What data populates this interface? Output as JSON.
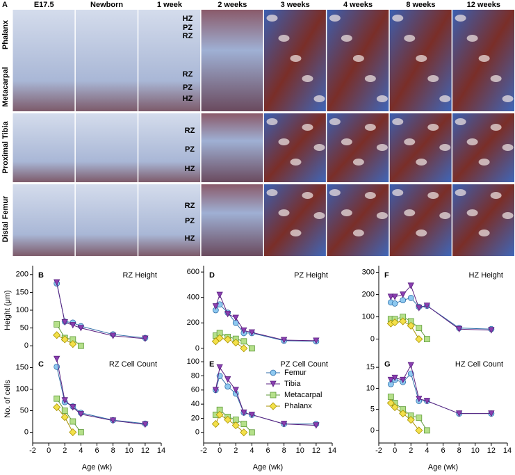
{
  "figure_a": {
    "panel_label": "A",
    "columns": [
      "E17.5",
      "Newborn",
      "1 week",
      "2 weeks",
      "3 weeks",
      "4 weeks",
      "8 weeks",
      "12 weeks"
    ],
    "rows": [
      "Phalanx",
      "Metacarpal",
      "Proximal Tibia",
      "Distal Femur"
    ],
    "zone_labels": [
      "HZ",
      "PZ",
      "RZ",
      "RZ",
      "PZ",
      "HZ",
      "RZ",
      "PZ",
      "HZ",
      "RZ",
      "PZ",
      "HZ"
    ]
  },
  "chart_data": [
    {
      "type": "line",
      "panel_label": "B",
      "title": "RZ Height",
      "y_label": "Height (μm)",
      "xlim": [
        -2,
        14
      ],
      "ylim": [
        -25,
        225
      ],
      "yticks": [
        0,
        50,
        100,
        150,
        200
      ],
      "series": [
        {
          "color": "#8ec9f0",
          "edge": "#2f6ea8",
          "marker": "circle",
          "x": [
            1,
            2,
            3,
            4,
            8,
            12
          ],
          "values": [
            175,
            68,
            65,
            55,
            32,
            22
          ]
        },
        {
          "color": "#8a3fb0",
          "edge": "#5a2080",
          "marker": "triangle",
          "x": [
            1,
            2,
            3,
            4,
            8,
            12
          ],
          "values": [
            178,
            66,
            58,
            50,
            28,
            20
          ]
        },
        {
          "color": "#b5e08a",
          "edge": "#5f9a3a",
          "marker": "square",
          "x": [
            1,
            2,
            3,
            4
          ],
          "values": [
            60,
            22,
            18,
            0
          ]
        },
        {
          "color": "#f3e04a",
          "edge": "#a89200",
          "marker": "diamond",
          "x": [
            1,
            2,
            3
          ],
          "values": [
            30,
            18,
            5
          ]
        }
      ]
    },
    {
      "type": "line",
      "panel_label": "C",
      "title": "RZ Cell Count",
      "y_label": "No. of cells",
      "x_label": "Age (wk)",
      "xlim": [
        -2,
        14
      ],
      "ylim": [
        -25,
        180
      ],
      "yticks": [
        0,
        50,
        100,
        150
      ],
      "xticks": [
        -2,
        0,
        2,
        4,
        6,
        8,
        10,
        12,
        14
      ],
      "series": [
        {
          "color": "#8ec9f0",
          "edge": "#2f6ea8",
          "marker": "circle",
          "x": [
            1,
            2,
            3,
            4,
            8,
            12
          ],
          "values": [
            152,
            70,
            60,
            45,
            28,
            20
          ]
        },
        {
          "color": "#8a3fb0",
          "edge": "#5a2080",
          "marker": "triangle",
          "x": [
            1,
            2,
            3,
            4,
            8,
            12
          ],
          "values": [
            170,
            74,
            58,
            42,
            27,
            18
          ]
        },
        {
          "color": "#b5e08a",
          "edge": "#5f9a3a",
          "marker": "square",
          "x": [
            1,
            2,
            3,
            4
          ],
          "values": [
            78,
            50,
            25,
            0
          ]
        },
        {
          "color": "#f3e04a",
          "edge": "#a89200",
          "marker": "diamond",
          "x": [
            1,
            2,
            3
          ],
          "values": [
            58,
            35,
            0
          ]
        }
      ]
    },
    {
      "type": "line",
      "panel_label": "D",
      "title": "PZ Height",
      "xlim": [
        -2,
        14
      ],
      "ylim": [
        -50,
        650
      ],
      "yticks": [
        0,
        200,
        400,
        600
      ],
      "series": [
        {
          "color": "#8ec9f0",
          "edge": "#2f6ea8",
          "marker": "circle",
          "x": [
            -0.5,
            0,
            1,
            2,
            3,
            4,
            8,
            12
          ],
          "values": [
            300,
            345,
            280,
            200,
            120,
            120,
            60,
            55
          ]
        },
        {
          "color": "#8a3fb0",
          "edge": "#5a2080",
          "marker": "triangle",
          "x": [
            -0.5,
            0,
            1,
            2,
            3,
            4,
            8,
            12
          ],
          "values": [
            330,
            420,
            270,
            240,
            140,
            125,
            65,
            60
          ]
        },
        {
          "color": "#b5e08a",
          "edge": "#5f9a3a",
          "marker": "square",
          "x": [
            -0.5,
            0,
            1,
            2,
            3,
            4
          ],
          "values": [
            100,
            120,
            90,
            75,
            55,
            0
          ]
        },
        {
          "color": "#f3e04a",
          "edge": "#a89200",
          "marker": "diamond",
          "x": [
            -0.5,
            0,
            1,
            2,
            3
          ],
          "values": [
            55,
            80,
            70,
            45,
            0
          ]
        }
      ]
    },
    {
      "type": "line",
      "panel_label": "E",
      "title": "PZ Cell Count",
      "x_label": "Age (wk)",
      "xlim": [
        -2,
        14
      ],
      "ylim": [
        -15,
        110
      ],
      "yticks": [
        0,
        20,
        40,
        60,
        80,
        100
      ],
      "xticks": [
        -2,
        0,
        2,
        4,
        6,
        8,
        10,
        12,
        14
      ],
      "series": [
        {
          "name": "Femur",
          "color": "#8ec9f0",
          "edge": "#2f6ea8",
          "marker": "circle",
          "x": [
            -0.5,
            0,
            1,
            2,
            3,
            4,
            8,
            12
          ],
          "values": [
            60,
            80,
            65,
            55,
            28,
            25,
            12,
            12
          ]
        },
        {
          "name": "Tibia",
          "color": "#8a3fb0",
          "edge": "#5a2080",
          "marker": "triangle",
          "x": [
            -0.5,
            0,
            1,
            2,
            3,
            4,
            8,
            12
          ],
          "values": [
            60,
            92,
            75,
            60,
            28,
            25,
            12,
            10
          ]
        },
        {
          "name": "Metacarpal",
          "color": "#b5e08a",
          "edge": "#5f9a3a",
          "marker": "square",
          "x": [
            -0.5,
            0,
            1,
            2,
            3,
            4
          ],
          "values": [
            25,
            32,
            22,
            18,
            12,
            0
          ]
        },
        {
          "name": "Phalanx",
          "color": "#f3e04a",
          "edge": "#a89200",
          "marker": "diamond",
          "x": [
            -0.5,
            0,
            1,
            2,
            3
          ],
          "values": [
            12,
            25,
            18,
            10,
            0
          ]
        }
      ]
    },
    {
      "type": "line",
      "panel_label": "F",
      "title": "HZ Height",
      "xlim": [
        -2,
        14
      ],
      "ylim": [
        -70,
        330
      ],
      "yticks": [
        0,
        100,
        200,
        300
      ],
      "series": [
        {
          "color": "#8ec9f0",
          "edge": "#2f6ea8",
          "marker": "circle",
          "x": [
            -0.5,
            0,
            1,
            2,
            3,
            4,
            8,
            12
          ],
          "values": [
            165,
            160,
            175,
            185,
            145,
            150,
            50,
            45
          ]
        },
        {
          "color": "#8a3fb0",
          "edge": "#5a2080",
          "marker": "triangle",
          "x": [
            -0.5,
            0,
            1,
            2,
            3,
            4,
            8,
            12
          ],
          "values": [
            190,
            190,
            200,
            240,
            140,
            150,
            45,
            40
          ]
        },
        {
          "color": "#b5e08a",
          "edge": "#5f9a3a",
          "marker": "square",
          "x": [
            -0.5,
            0,
            1,
            2,
            3,
            4
          ],
          "values": [
            90,
            90,
            100,
            80,
            50,
            0
          ]
        },
        {
          "color": "#f3e04a",
          "edge": "#a89200",
          "marker": "diamond",
          "x": [
            -0.5,
            0,
            1,
            2,
            3
          ],
          "values": [
            70,
            75,
            80,
            60,
            0
          ]
        }
      ]
    },
    {
      "type": "line",
      "panel_label": "G",
      "title": "HZ Cell Count",
      "x_label": "Age (wk)",
      "xlim": [
        -2,
        14
      ],
      "ylim": [
        -3,
        18
      ],
      "yticks": [
        0,
        5,
        10,
        15
      ],
      "xticks": [
        -2,
        0,
        2,
        4,
        6,
        8,
        10,
        12,
        14
      ],
      "series": [
        {
          "color": "#8ec9f0",
          "edge": "#2f6ea8",
          "marker": "circle",
          "x": [
            -0.5,
            0,
            1,
            2,
            3,
            4,
            8,
            12
          ],
          "values": [
            11,
            12,
            11.5,
            13.5,
            7,
            7,
            4,
            4
          ]
        },
        {
          "color": "#8a3fb0",
          "edge": "#5a2080",
          "marker": "triangle",
          "x": [
            -0.5,
            0,
            1,
            2,
            3,
            4,
            8,
            12
          ],
          "values": [
            12,
            12.5,
            12,
            15.5,
            7.5,
            7,
            4,
            4
          ]
        },
        {
          "color": "#b5e08a",
          "edge": "#5f9a3a",
          "marker": "square",
          "x": [
            -0.5,
            0,
            1,
            2,
            3,
            4
          ],
          "values": [
            8,
            6.5,
            5,
            3.5,
            3,
            0
          ]
        },
        {
          "color": "#f3e04a",
          "edge": "#a89200",
          "marker": "diamond",
          "x": [
            -0.5,
            0,
            1,
            2,
            3
          ],
          "values": [
            6.5,
            5.5,
            4,
            2.5,
            0
          ]
        }
      ]
    }
  ]
}
